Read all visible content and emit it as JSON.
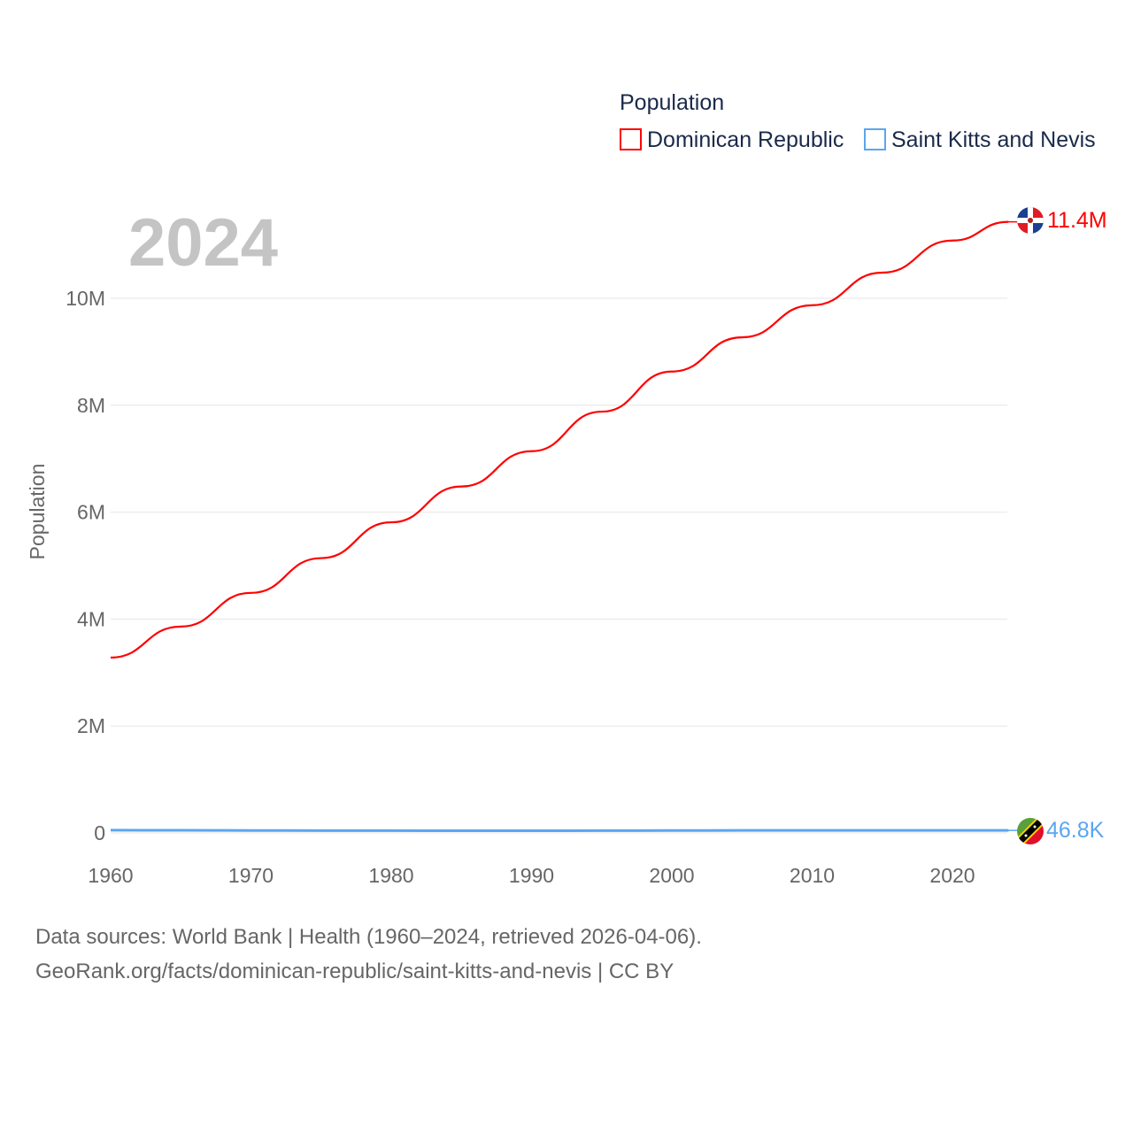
{
  "chart_data": {
    "type": "line",
    "title": "Population",
    "year_label": "2024",
    "ylabel": "Population",
    "xlabel": "",
    "xlim": [
      1960,
      2024
    ],
    "ylim": [
      0,
      11400000
    ],
    "x_ticks": [
      "1960",
      "1970",
      "1980",
      "1990",
      "2000",
      "2010",
      "2020"
    ],
    "x_tick_values": [
      1960,
      1970,
      1980,
      1990,
      2000,
      2010,
      2020
    ],
    "y_ticks": [
      "0",
      "2M",
      "4M",
      "6M",
      "8M",
      "10M"
    ],
    "y_tick_values": [
      0,
      2000000,
      4000000,
      6000000,
      8000000,
      10000000
    ],
    "grid": true,
    "legend_position": "top-right",
    "x": [
      1960,
      1965,
      1970,
      1975,
      1980,
      1985,
      1990,
      1995,
      2000,
      2005,
      2010,
      2015,
      2020,
      2024
    ],
    "series": [
      {
        "name": "Dominican Republic",
        "color": "#ff0000",
        "end_label": "11.4M",
        "values": [
          3280000,
          3860000,
          4490000,
          5140000,
          5810000,
          6480000,
          7140000,
          7880000,
          8630000,
          9270000,
          9870000,
          10480000,
          11080000,
          11430000
        ]
      },
      {
        "name": "Saint Kitts and Nevis",
        "color": "#5aa6f0",
        "end_label": "46.8K",
        "values": [
          51200,
          50100,
          45500,
          44000,
          43200,
          41500,
          41000,
          42500,
          45500,
          46900,
          47400,
          47600,
          47600,
          46800
        ]
      }
    ]
  },
  "footer": {
    "line1": "Data sources: World Bank | Health (1960–2024, retrieved 2026-04-06).",
    "line2": "GeoRank.org/facts/dominican-republic/saint-kitts-and-nevis | CC BY"
  }
}
